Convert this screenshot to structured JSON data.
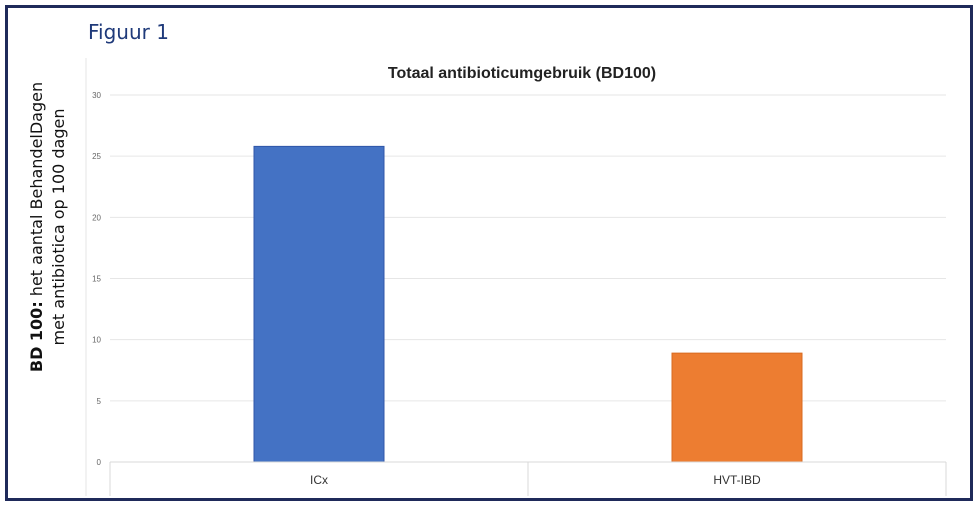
{
  "figure_label": "Figuur 1",
  "ylabel_bold": "BD 100:",
  "ylabel_line1": " het aantal BehandelDagen",
  "ylabel_line2": "met antibiotica op 100 dagen",
  "chart_data": {
    "type": "bar",
    "title": "Totaal antibioticumgebruik (BD100)",
    "categories": [
      "ICx",
      "HVT-IBD"
    ],
    "values": [
      25.8,
      8.9
    ],
    "colors": [
      "#4472c4",
      "#ed7d31"
    ],
    "ylim": [
      0,
      30
    ],
    "yticks": [
      0,
      5,
      10,
      15,
      20,
      25,
      30
    ],
    "grid": true,
    "xlabel": "",
    "ylabel": "BD 100: het aantal BehandelDagen met antibiotica op 100 dagen"
  }
}
